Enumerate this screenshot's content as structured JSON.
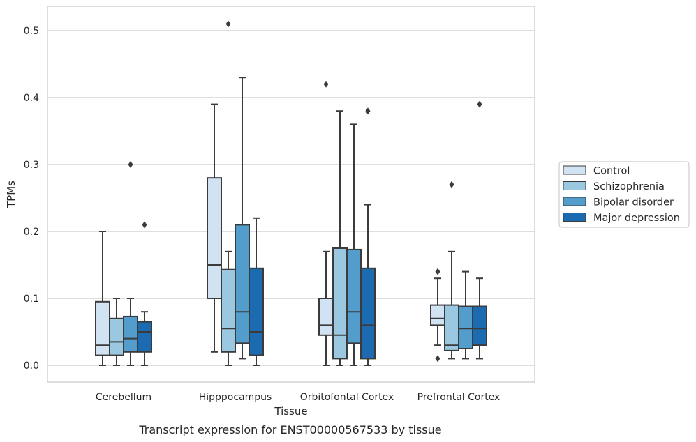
{
  "chart_data": {
    "type": "box",
    "xlabel": "Tissue",
    "ylabel": "TPMs",
    "caption": "Transcript expression for ENST00000567533 by tissue",
    "ylim": [
      -0.025,
      0.537
    ],
    "yticks": [
      "0.0",
      "0.1",
      "0.2",
      "0.3",
      "0.4",
      "0.5"
    ],
    "ytick_values": [
      0.0,
      0.1,
      0.2,
      0.3,
      0.4,
      0.5
    ],
    "grid": "horizontal",
    "legend_position": "right",
    "categories": [
      "Cerebellum",
      "Hipppocampus",
      "Orbitofontal Cortex",
      "Prefrontal Cortex"
    ],
    "series": [
      {
        "name": "Control",
        "color": "#d1e2f2",
        "boxes": [
          {
            "whislo": 0.0,
            "q1": 0.015,
            "med": 0.03,
            "q3": 0.095,
            "whishi": 0.2,
            "fliers": []
          },
          {
            "whislo": 0.02,
            "q1": 0.1,
            "med": 0.15,
            "q3": 0.28,
            "whishi": 0.39,
            "fliers": []
          },
          {
            "whislo": 0.0,
            "q1": 0.045,
            "med": 0.06,
            "q3": 0.1,
            "whishi": 0.17,
            "fliers": [
              0.42
            ]
          },
          {
            "whislo": 0.03,
            "q1": 0.06,
            "med": 0.07,
            "q3": 0.09,
            "whishi": 0.13,
            "fliers": [
              0.14,
              0.01
            ]
          }
        ]
      },
      {
        "name": "Schizophrenia",
        "color": "#9ac8e0",
        "boxes": [
          {
            "whislo": 0.0,
            "q1": 0.015,
            "med": 0.035,
            "q3": 0.07,
            "whishi": 0.1,
            "fliers": []
          },
          {
            "whislo": 0.0,
            "q1": 0.02,
            "med": 0.055,
            "q3": 0.143,
            "whishi": 0.17,
            "fliers": [
              0.51
            ]
          },
          {
            "whislo": 0.0,
            "q1": 0.01,
            "med": 0.045,
            "q3": 0.175,
            "whishi": 0.38,
            "fliers": []
          },
          {
            "whislo": 0.01,
            "q1": 0.022,
            "med": 0.03,
            "q3": 0.09,
            "whishi": 0.17,
            "fliers": [
              0.27
            ]
          }
        ]
      },
      {
        "name": "Bipolar disorder",
        "color": "#529dcc",
        "boxes": [
          {
            "whislo": 0.0,
            "q1": 0.02,
            "med": 0.04,
            "q3": 0.073,
            "whishi": 0.1,
            "fliers": [
              0.3
            ]
          },
          {
            "whislo": 0.01,
            "q1": 0.033,
            "med": 0.08,
            "q3": 0.21,
            "whishi": 0.43,
            "fliers": []
          },
          {
            "whislo": 0.0,
            "q1": 0.033,
            "med": 0.08,
            "q3": 0.173,
            "whishi": 0.36,
            "fliers": []
          },
          {
            "whislo": 0.01,
            "q1": 0.025,
            "med": 0.055,
            "q3": 0.088,
            "whishi": 0.14,
            "fliers": []
          }
        ]
      },
      {
        "name": "Major depression",
        "color": "#1c6aaf",
        "boxes": [
          {
            "whislo": 0.0,
            "q1": 0.02,
            "med": 0.05,
            "q3": 0.065,
            "whishi": 0.08,
            "fliers": [
              0.21
            ]
          },
          {
            "whislo": 0.0,
            "q1": 0.015,
            "med": 0.05,
            "q3": 0.145,
            "whishi": 0.22,
            "fliers": []
          },
          {
            "whislo": 0.0,
            "q1": 0.01,
            "med": 0.06,
            "q3": 0.145,
            "whishi": 0.24,
            "fliers": [
              0.38
            ]
          },
          {
            "whislo": 0.01,
            "q1": 0.03,
            "med": 0.055,
            "q3": 0.088,
            "whishi": 0.13,
            "fliers": [
              0.39
            ]
          }
        ]
      }
    ]
  }
}
